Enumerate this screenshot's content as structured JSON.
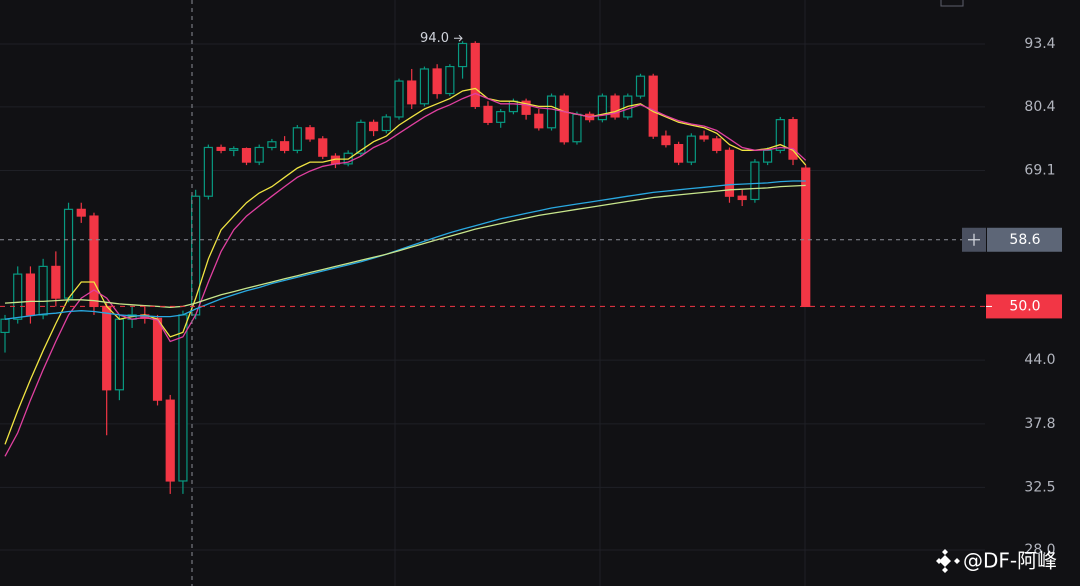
{
  "chart_data": {
    "type": "candlestick",
    "log_scale": true,
    "grid": true,
    "ylim": [
      25.7,
      103.7
    ],
    "yticks": [
      {
        "value": 28,
        "label": "28.0"
      },
      32.5,
      37.8,
      {
        "value": 44,
        "label": "44.0"
      },
      69.1,
      80.4,
      93.4
    ],
    "up_color": "#089981",
    "down_color": "#f23645",
    "open": [
      47,
      48.5,
      54,
      49,
      55,
      51,
      63,
      62,
      50,
      41,
      48.5,
      49,
      48.6,
      40,
      33,
      49,
      65,
      73,
      72.5,
      72.8,
      70.5,
      73,
      74,
      72.5,
      76.5,
      74.5,
      71.5,
      70.2,
      72,
      77.5,
      76,
      78.5,
      85.5,
      81,
      88,
      83,
      88.5,
      93.5,
      80.5,
      77.5,
      79.5,
      81.5,
      79,
      76.5,
      82.5,
      74,
      79,
      78,
      82.5,
      78.5,
      82.5,
      86.5,
      75,
      73.5,
      70.5,
      75,
      74.5,
      72.5,
      65,
      64.5,
      70.5,
      72.5,
      78,
      69.5
    ],
    "high": [
      49,
      55,
      55,
      56,
      57,
      64,
      64,
      62.5,
      50.5,
      49,
      50,
      50,
      49,
      40.5,
      49.5,
      66,
      73.5,
      73.5,
      73.2,
      73,
      73.5,
      74.5,
      75,
      77,
      77,
      75,
      72,
      72.5,
      78,
      78,
      79,
      86,
      88,
      88.5,
      89,
      89,
      94,
      94,
      81.5,
      80,
      82,
      82,
      80,
      83,
      83,
      79.5,
      79.5,
      83,
      83,
      83,
      87,
      87,
      76,
      74,
      75.5,
      76,
      75,
      73,
      66,
      71,
      73,
      78.5,
      78.5,
      70
    ],
    "low": [
      44.8,
      48,
      48,
      48.5,
      50,
      50.5,
      61,
      49,
      36.8,
      40,
      47.5,
      48,
      39.5,
      32,
      32,
      48.5,
      64.5,
      72,
      71.5,
      70,
      70,
      72.5,
      72,
      72,
      74,
      71,
      69.5,
      69.8,
      71.5,
      75,
      75.5,
      78,
      80,
      80.5,
      82,
      82.5,
      86,
      80,
      77,
      76.5,
      79,
      78,
      76,
      76,
      73.5,
      73.5,
      77.5,
      77.5,
      78,
      78,
      82,
      74.5,
      73,
      70,
      70,
      74,
      72,
      64,
      63.5,
      64,
      70,
      72,
      70,
      50
    ],
    "close": [
      48.5,
      54,
      49,
      55,
      51,
      63,
      62,
      50,
      41,
      48.5,
      49,
      48.6,
      40,
      33,
      49,
      65,
      73,
      72.5,
      72.8,
      70.5,
      73,
      74,
      72.5,
      76.5,
      74.5,
      71.5,
      70.2,
      72,
      77.5,
      76,
      78.5,
      85.5,
      81,
      88,
      83,
      88.5,
      93.5,
      80.5,
      77.5,
      79.5,
      81.5,
      79,
      76.5,
      82.5,
      74,
      79,
      78,
      82.5,
      78.5,
      82.5,
      86.5,
      75,
      73.5,
      70.5,
      75,
      74.5,
      72.5,
      65,
      64.5,
      70.5,
      72.5,
      78,
      71,
      50
    ],
    "lines": [
      {
        "color": "#f0e442",
        "values": [
          36,
          39,
          42,
          45,
          48,
          51,
          53,
          53,
          50,
          48.5,
          48.8,
          49,
          48.5,
          46.5,
          47,
          51,
          56,
          60,
          62,
          64,
          65.5,
          66.5,
          68,
          69.5,
          70.5,
          70.5,
          71,
          71,
          72.5,
          74,
          75,
          77,
          78.5,
          80,
          81,
          82,
          83.5,
          84,
          82,
          81.5,
          81.5,
          81,
          80.5,
          80.5,
          79.5,
          79,
          78.5,
          79,
          79.5,
          80.5,
          81,
          79.5,
          78.5,
          77.5,
          77,
          76.5,
          75.5,
          73.5,
          72.5,
          72.5,
          72.8,
          73.5,
          72.5,
          70
        ]
      },
      {
        "color": "#e040a0",
        "values": [
          35,
          37,
          40,
          43,
          46,
          49,
          51,
          52,
          51,
          49,
          48.5,
          48.7,
          48.4,
          46,
          46.5,
          49,
          53,
          57,
          60,
          62,
          63.5,
          65,
          66.5,
          68,
          69,
          69.8,
          70.2,
          70.5,
          71.5,
          73,
          74,
          75.5,
          77,
          78.5,
          79.8,
          80.8,
          82,
          83,
          82,
          81,
          81,
          80.8,
          80.2,
          80,
          79.5,
          79,
          78.5,
          78.8,
          79.2,
          80,
          80.8,
          79.8,
          78.7,
          77.8,
          77.2,
          76.8,
          76,
          74.5,
          73,
          72.5,
          72.6,
          73,
          72.8,
          70.8
        ]
      },
      {
        "color": "#29a8e0",
        "values": [
          48.5,
          48.7,
          48.9,
          49.1,
          49.2,
          49.4,
          49.5,
          49.4,
          49.2,
          49,
          48.9,
          48.9,
          48.8,
          48.8,
          49,
          49.7,
          50.3,
          50.9,
          51.4,
          51.9,
          52.3,
          52.8,
          53.2,
          53.6,
          54,
          54.4,
          54.8,
          55.2,
          55.6,
          56.1,
          56.6,
          57.2,
          57.8,
          58.4,
          59,
          59.6,
          60.1,
          60.6,
          61.1,
          61.6,
          62,
          62.4,
          62.8,
          63.2,
          63.5,
          63.8,
          64.1,
          64.4,
          64.7,
          65,
          65.3,
          65.6,
          65.8,
          66,
          66.2,
          66.4,
          66.6,
          66.8,
          66.9,
          67,
          67.1,
          67.3,
          67.4,
          67.4
        ]
      },
      {
        "color": "#c8e68c",
        "values": [
          50.4,
          50.5,
          50.6,
          50.6,
          50.7,
          50.8,
          50.8,
          50.7,
          50.5,
          50.3,
          50.2,
          50.1,
          50,
          49.9,
          50,
          50.4,
          50.9,
          51.4,
          51.8,
          52.2,
          52.6,
          53,
          53.4,
          53.8,
          54.2,
          54.6,
          55,
          55.4,
          55.8,
          56.2,
          56.6,
          57.1,
          57.6,
          58.1,
          58.6,
          59.1,
          59.6,
          60.1,
          60.5,
          60.9,
          61.3,
          61.7,
          62.1,
          62.4,
          62.7,
          63,
          63.3,
          63.6,
          63.9,
          64.2,
          64.5,
          64.8,
          65,
          65.2,
          65.4,
          65.6,
          65.8,
          66,
          66.1,
          66.2,
          66.3,
          66.5,
          66.6,
          66.7
        ]
      }
    ],
    "high_annotation": {
      "value": 94,
      "label": "94.0"
    },
    "crosshair_price": 58.6,
    "last_price": {
      "value": 50,
      "label": "50.0"
    },
    "watermark": "@DF-阿峰"
  }
}
